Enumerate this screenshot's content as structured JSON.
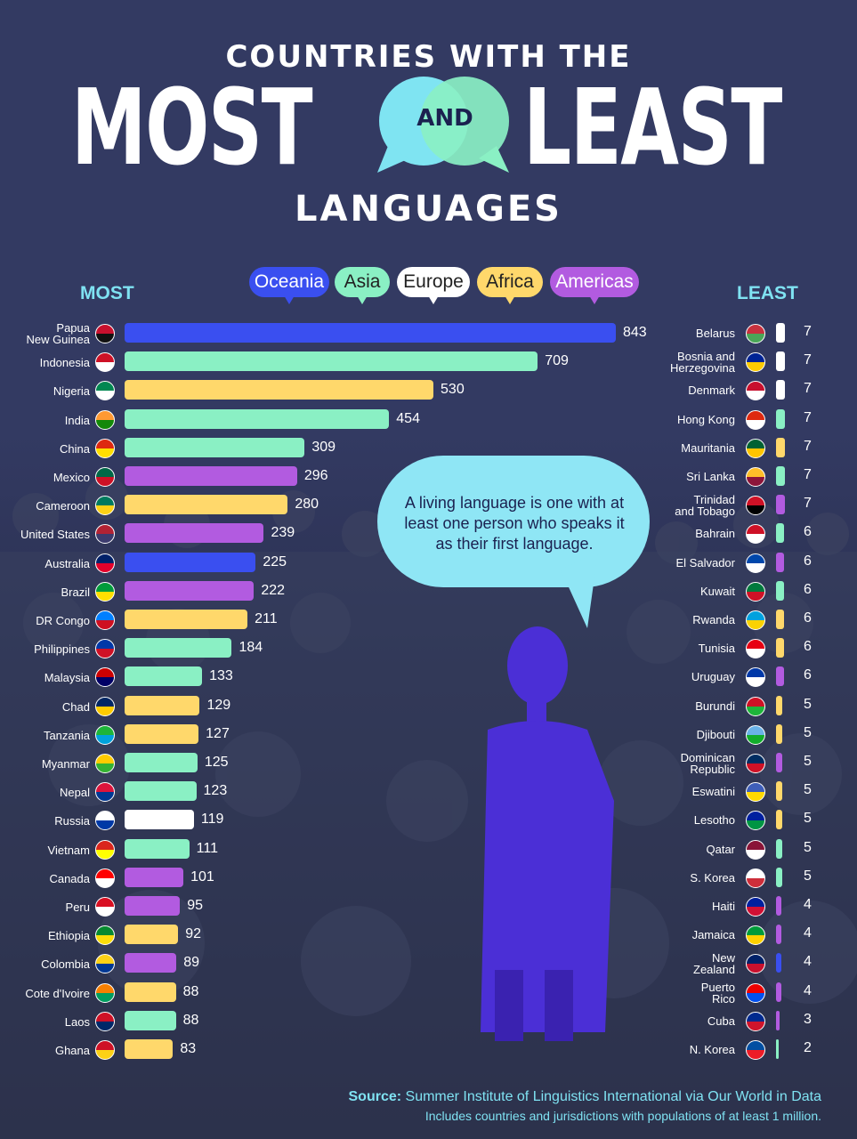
{
  "title": {
    "top": "COUNTRIES WITH THE",
    "most": "MOST",
    "and": "AND",
    "least": "LEAST",
    "bottom": "LANGUAGES"
  },
  "legend": [
    {
      "name": "Oceania",
      "color": "#3a4ff0"
    },
    {
      "name": "Asia",
      "color": "#8af0c4"
    },
    {
      "name": "Europe",
      "color": "#ffffff"
    },
    {
      "name": "Africa",
      "color": "#ffd86b"
    },
    {
      "name": "Americas",
      "color": "#b25be0"
    }
  ],
  "headings": {
    "most": "MOST",
    "least": "LEAST"
  },
  "callout": "A living language is one with at least one person who speaks it as their first language.",
  "source": {
    "label": "Source:",
    "text": "Summer Institute of Linguistics International via Our World in Data",
    "note": "Includes countries and jurisdictions with populations of at least 1 million."
  },
  "chart_data": [
    {
      "type": "bar",
      "title": "MOST",
      "categories": [
        "Papua New Guinea",
        "Indonesia",
        "Nigeria",
        "India",
        "China",
        "Mexico",
        "Cameroon",
        "United States",
        "Australia",
        "Brazil",
        "DR Congo",
        "Philippines",
        "Malaysia",
        "Chad",
        "Tanzania",
        "Myanmar",
        "Nepal",
        "Russia",
        "Vietnam",
        "Canada",
        "Peru",
        "Ethiopia",
        "Colombia",
        "Cote d'Ivoire",
        "Laos",
        "Ghana"
      ],
      "values": [
        843,
        709,
        530,
        454,
        309,
        296,
        280,
        239,
        225,
        222,
        211,
        184,
        133,
        129,
        127,
        125,
        123,
        119,
        111,
        101,
        95,
        92,
        89,
        88,
        88,
        83
      ],
      "regions": [
        "Oceania",
        "Asia",
        "Africa",
        "Asia",
        "Asia",
        "Americas",
        "Africa",
        "Americas",
        "Oceania",
        "Americas",
        "Africa",
        "Asia",
        "Asia",
        "Africa",
        "Africa",
        "Asia",
        "Asia",
        "Europe",
        "Asia",
        "Americas",
        "Americas",
        "Africa",
        "Americas",
        "Africa",
        "Asia",
        "Africa"
      ],
      "flags": [
        [
          "#c8102e",
          "#111111"
        ],
        [
          "#ce1126",
          "#ffffff"
        ],
        [
          "#008751",
          "#ffffff"
        ],
        [
          "#ff9933",
          "#138808"
        ],
        [
          "#de2910",
          "#ffde00"
        ],
        [
          "#006847",
          "#ce1126"
        ],
        [
          "#007a5e",
          "#fcd116"
        ],
        [
          "#b22234",
          "#3c3b6e"
        ],
        [
          "#012169",
          "#e4002b"
        ],
        [
          "#009c3b",
          "#ffdf00"
        ],
        [
          "#007fff",
          "#ce1021"
        ],
        [
          "#0038a8",
          "#ce1126"
        ],
        [
          "#cc0001",
          "#010066"
        ],
        [
          "#002664",
          "#fecb00"
        ],
        [
          "#1eb53a",
          "#00a3dd"
        ],
        [
          "#fecb00",
          "#34b233"
        ],
        [
          "#dc143c",
          "#003893"
        ],
        [
          "#ffffff",
          "#0039a6"
        ],
        [
          "#da251d",
          "#ffff00"
        ],
        [
          "#ff0000",
          "#ffffff"
        ],
        [
          "#d91023",
          "#ffffff"
        ],
        [
          "#078930",
          "#fcdd09"
        ],
        [
          "#fcd116",
          "#003893"
        ],
        [
          "#f77f00",
          "#009e60"
        ],
        [
          "#ce1126",
          "#002868"
        ],
        [
          "#ce1126",
          "#fcd116"
        ]
      ]
    },
    {
      "type": "bar",
      "title": "LEAST",
      "categories": [
        "Belarus",
        "Bosnia and Herzegovina",
        "Denmark",
        "Hong Kong",
        "Mauritania",
        "Sri Lanka",
        "Trinidad and Tobago",
        "Bahrain",
        "El Salvador",
        "Kuwait",
        "Rwanda",
        "Tunisia",
        "Uruguay",
        "Burundi",
        "Djibouti",
        "Dominican Republic",
        "Eswatini",
        "Lesotho",
        "Qatar",
        "S. Korea",
        "Haiti",
        "Jamaica",
        "New Zealand",
        "Puerto Rico",
        "Cuba",
        "N. Korea"
      ],
      "values": [
        7,
        7,
        7,
        7,
        7,
        7,
        7,
        6,
        6,
        6,
        6,
        6,
        6,
        5,
        5,
        5,
        5,
        5,
        5,
        5,
        4,
        4,
        4,
        4,
        3,
        2
      ],
      "regions": [
        "Europe",
        "Europe",
        "Europe",
        "Asia",
        "Africa",
        "Asia",
        "Americas",
        "Asia",
        "Americas",
        "Asia",
        "Africa",
        "Africa",
        "Americas",
        "Africa",
        "Africa",
        "Americas",
        "Africa",
        "Africa",
        "Asia",
        "Asia",
        "Americas",
        "Americas",
        "Oceania",
        "Americas",
        "Americas",
        "Asia"
      ],
      "flags": [
        [
          "#c8313e",
          "#4aa657"
        ],
        [
          "#002395",
          "#fecb00"
        ],
        [
          "#c8102e",
          "#ffffff"
        ],
        [
          "#de2910",
          "#ffffff"
        ],
        [
          "#006233",
          "#ffc400"
        ],
        [
          "#ffbe29",
          "#8d153a"
        ],
        [
          "#ce1126",
          "#000000"
        ],
        [
          "#ce1126",
          "#ffffff"
        ],
        [
          "#0047ab",
          "#ffffff"
        ],
        [
          "#007a3d",
          "#ce1126"
        ],
        [
          "#00a1de",
          "#fad201"
        ],
        [
          "#e70013",
          "#ffffff"
        ],
        [
          "#0038a8",
          "#ffffff"
        ],
        [
          "#ce1126",
          "#1eb53a"
        ],
        [
          "#6ab2e7",
          "#12ad2b"
        ],
        [
          "#002d62",
          "#ce1126"
        ],
        [
          "#3e5eb9",
          "#ffd900"
        ],
        [
          "#00209f",
          "#009543"
        ],
        [
          "#8a1538",
          "#ffffff"
        ],
        [
          "#ffffff",
          "#cd2e3a"
        ],
        [
          "#00209f",
          "#d21034"
        ],
        [
          "#009b3a",
          "#fed100"
        ],
        [
          "#012169",
          "#c8102e"
        ],
        [
          "#ed0000",
          "#0050f0"
        ],
        [
          "#002a8f",
          "#cf142b"
        ],
        [
          "#024fa2",
          "#ed1c27"
        ]
      ]
    }
  ]
}
